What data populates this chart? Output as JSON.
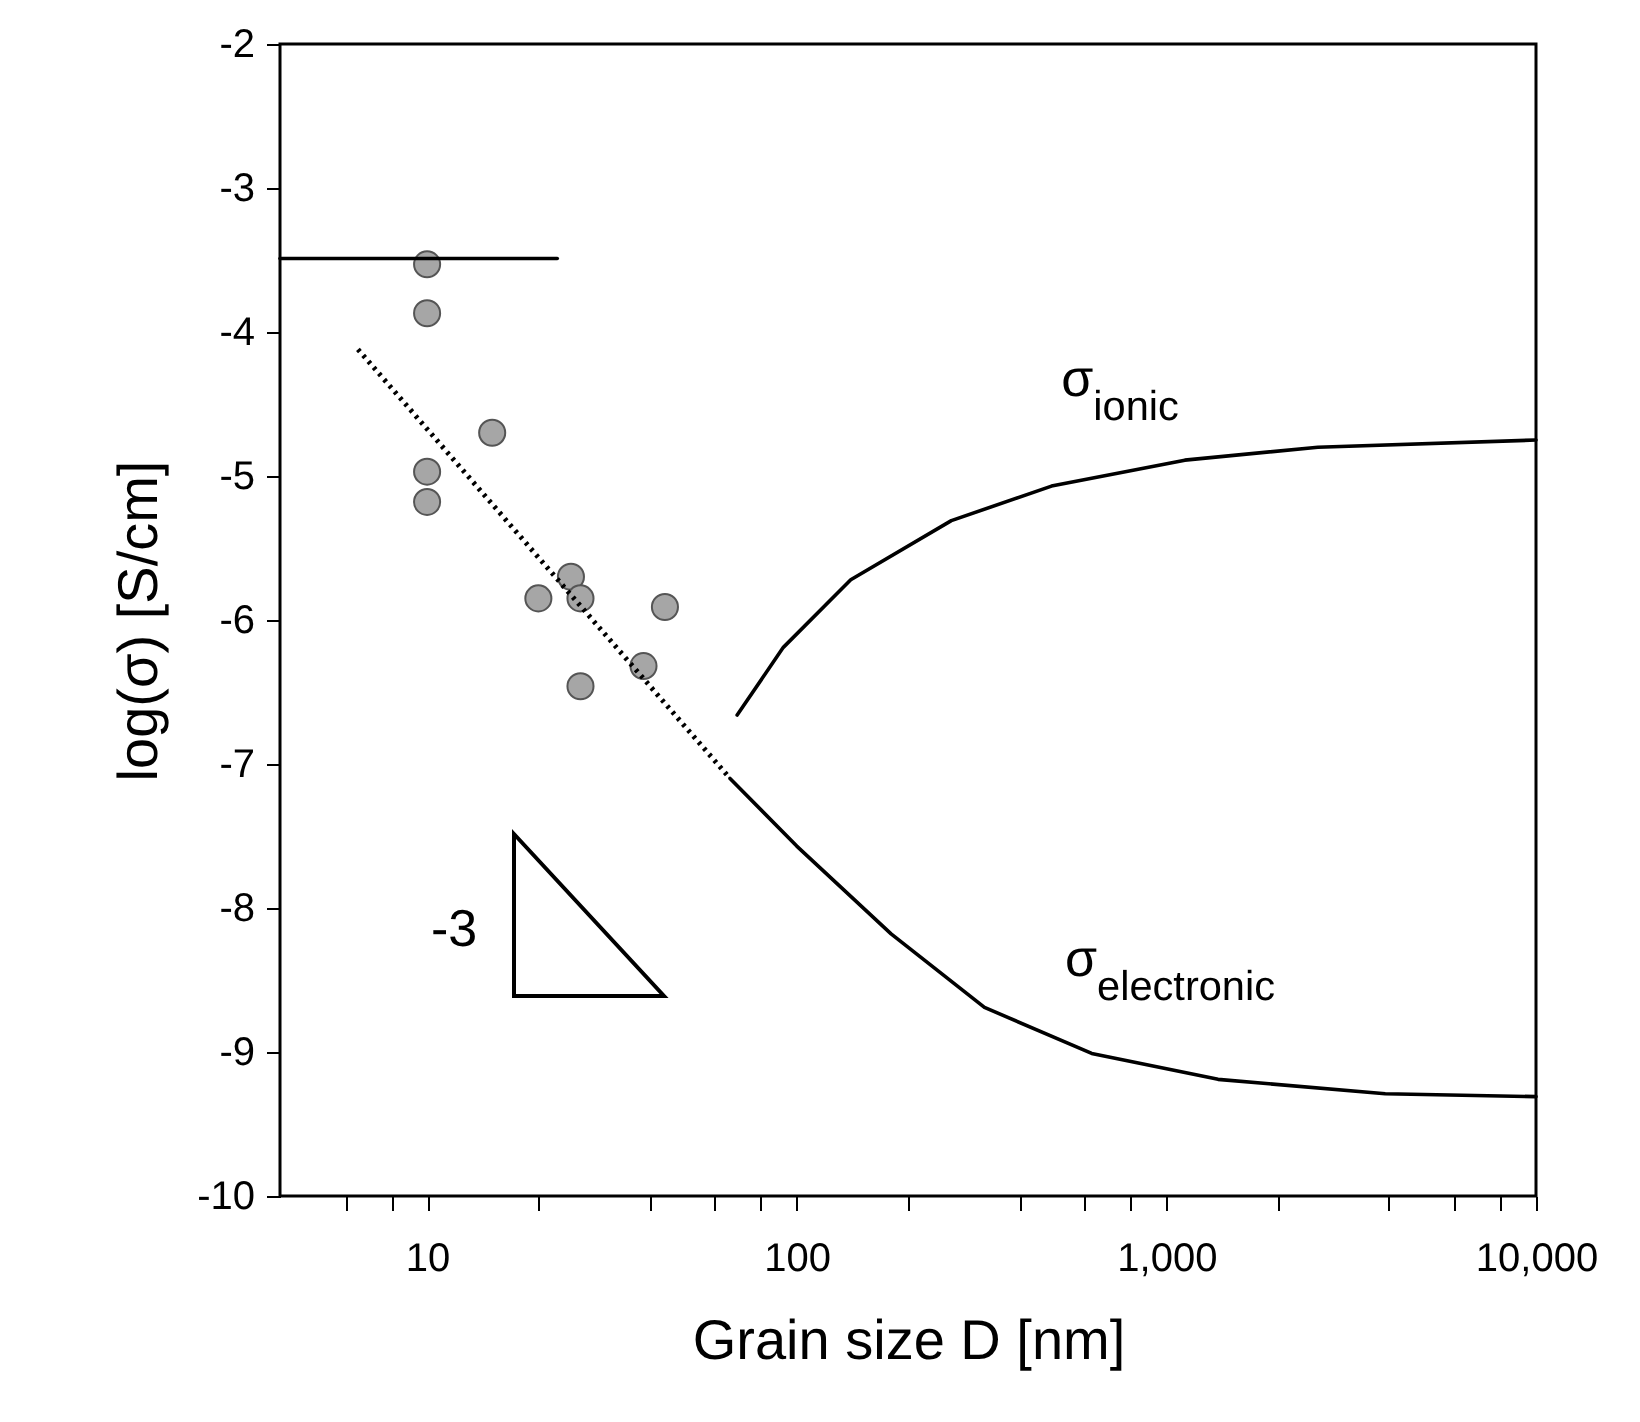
{
  "chart_data": {
    "type": "line",
    "xlabel": "Grain size D [nm]",
    "ylabel": "log(σ) [S/cm]",
    "log": "x",
    "grid": false,
    "xlim": [
      4,
      10000
    ],
    "ylim": [
      -10,
      -2
    ],
    "xticks": [
      {
        "value": 6,
        "label": null
      },
      {
        "value": 8,
        "label": null
      },
      10,
      {
        "value": 20,
        "label": null
      },
      {
        "value": 40,
        "label": null
      },
      {
        "value": 60,
        "label": null
      },
      {
        "value": 80,
        "label": null
      },
      100,
      {
        "value": 200,
        "label": null
      },
      {
        "value": 400,
        "label": null
      },
      {
        "value": 600,
        "label": null
      },
      {
        "value": 800,
        "label": null
      },
      {
        "value": 1000,
        "label": "1,000"
      },
      {
        "value": 2000,
        "label": null
      },
      {
        "value": 4000,
        "label": null
      },
      {
        "value": 6000,
        "label": null
      },
      {
        "value": 8000,
        "label": null
      },
      {
        "value": 10000,
        "label": "10,000"
      }
    ],
    "yticks": [
      -10,
      -9,
      -8,
      -7,
      -6,
      -5,
      -4,
      -3,
      -2
    ],
    "series": [
      {
        "type": "scatter",
        "marker": "circle",
        "color": "#a6a6a6",
        "x": [
          10,
          10,
          15,
          10,
          10,
          20,
          24.5,
          26,
          44,
          38.5,
          26
        ],
        "values": [
          -3.53,
          -3.87,
          -4.7,
          -4.97,
          -5.18,
          -5.85,
          -5.7,
          -5.85,
          -5.91,
          -6.32,
          -6.46
        ]
      },
      {
        "type": "line",
        "color": "#000000",
        "x": [
          4,
          22.5
        ],
        "values": [
          -3.49,
          -3.49
        ]
      },
      {
        "type": "line",
        "line_style": "dotted",
        "color": "#000000",
        "x": [
          6.5,
          66
        ],
        "values": [
          -4.12,
          -7.1
        ]
      },
      {
        "type": "line",
        "color": "#000000",
        "x": [
          66,
          100,
          180,
          322,
          628,
          1380,
          3910,
          10000
        ],
        "values": [
          -7.1,
          -7.57,
          -8.18,
          -8.69,
          -9.01,
          -9.19,
          -9.29,
          -9.31
        ]
      },
      {
        "type": "line",
        "color": "#000000",
        "x": [
          69,
          92,
          140,
          262,
          489,
          1122,
          2570,
          10000
        ],
        "values": [
          -6.66,
          -6.19,
          -5.72,
          -5.31,
          -5.07,
          -4.89,
          -4.8,
          -4.75
        ]
      }
    ],
    "annotations": [
      "σ$_{ionic}$",
      "σ$_{electronic}$",
      "-3"
    ]
  }
}
